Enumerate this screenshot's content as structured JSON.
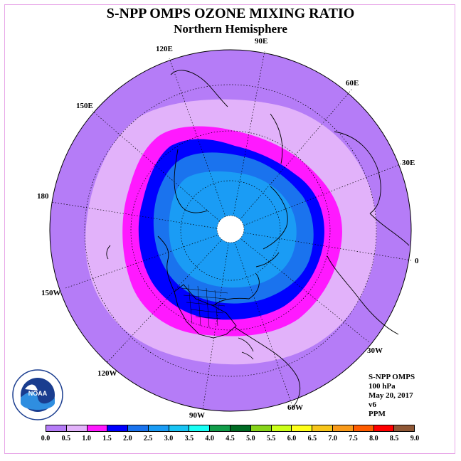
{
  "title": "S-NPP OMPS OZONE MIXING RATIO",
  "subtitle": "Northern Hemisphere",
  "longitude_labels": {
    "e90": "90E",
    "e60": "60E",
    "e30": "30E",
    "zero": "0",
    "w30": "30W",
    "w60": "60W",
    "w90": "90W",
    "w120": "120W",
    "w150": "150W",
    "d180": "180",
    "e150": "150E",
    "e120": "120E"
  },
  "info": {
    "product": "S-NPP OMPS",
    "level": "100 hPa",
    "date": "May 20, 2017",
    "version": "v6",
    "units": "PPM"
  },
  "logo_text": "NOAA",
  "colorbar": {
    "colors": [
      "#b57cf7",
      "#e2b2fa",
      "#ff19ff",
      "#0000ff",
      "#1a73ee",
      "#1a9cf5",
      "#19c4f4",
      "#19fff5",
      "#129d4a",
      "#006b23",
      "#87d41a",
      "#ccff19",
      "#ffff19",
      "#f7c51a",
      "#f99a1a",
      "#ff5c00",
      "#ff0000",
      "#8f5735"
    ],
    "ticks": [
      "0.0",
      "0.5",
      "1.0",
      "1.5",
      "2.0",
      "2.5",
      "3.0",
      "3.5",
      "4.0",
      "4.5",
      "5.0",
      "5.5",
      "6.0",
      "6.5",
      "7.0",
      "7.5",
      "8.0",
      "8.5",
      "9.0"
    ]
  },
  "map_colors": {
    "outer": "#b57cf7",
    "band_05": "#e2b2fa",
    "band_10": "#ff19ff",
    "band_15": "#0000ff",
    "band_20": "#1a73ee",
    "band_25": "#1a9cf5",
    "pole": "#ffffff"
  }
}
